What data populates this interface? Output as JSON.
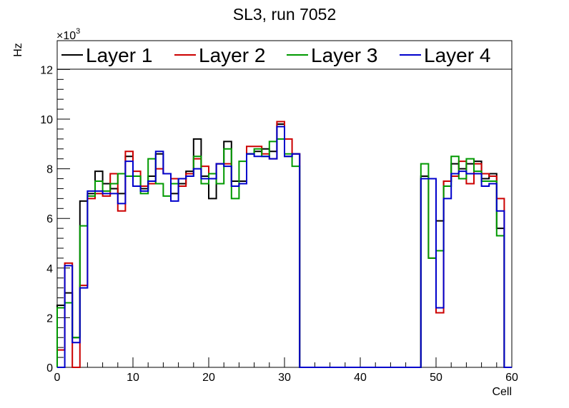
{
  "chart_data": {
    "type": "line",
    "title": "SL3, run 7052",
    "xlabel": "Cell",
    "ylabel": "Hz",
    "exponent_label": "×10",
    "exponent_power": "3",
    "xlim": [
      0,
      60
    ],
    "ylim": [
      0,
      13
    ],
    "x_ticks": [
      0,
      10,
      20,
      30,
      40,
      50,
      60
    ],
    "x_tick_labels": [
      "0",
      "10",
      "20",
      "30",
      "40",
      "50",
      "60"
    ],
    "y_ticks": [
      0,
      2,
      4,
      6,
      8,
      10,
      12
    ],
    "y_tick_labels": [
      "0",
      "2",
      "4",
      "6",
      "8",
      "10",
      "12"
    ],
    "bin_width": 1,
    "legend_position": "top",
    "series": [
      {
        "name": "Layer 1",
        "color": "#000000",
        "values": [
          2.5,
          3.0,
          1.2,
          6.7,
          7.0,
          7.9,
          7.4,
          7.2,
          7.0,
          8.5,
          7.7,
          7.2,
          7.7,
          8.6,
          7.8,
          7.0,
          7.4,
          7.9,
          9.2,
          7.7,
          6.8,
          8.2,
          9.1,
          7.5,
          7.5,
          8.6,
          8.7,
          8.8,
          8.7,
          9.8,
          8.5,
          8.6,
          0,
          0,
          0,
          0,
          0,
          0,
          0,
          0,
          0,
          0,
          0,
          0,
          0,
          0,
          0,
          0,
          7.7,
          7.6,
          5.9,
          7.5,
          8.2,
          8.0,
          8.2,
          8.3,
          7.6,
          7.8,
          5.6,
          0
        ]
      },
      {
        "name": "Layer 2",
        "color": "#cc0000",
        "values": [
          0.7,
          4.2,
          0,
          3.3,
          6.8,
          7.0,
          6.9,
          7.8,
          6.3,
          8.7,
          7.9,
          7.3,
          7.4,
          8.0,
          7.8,
          7.6,
          7.3,
          7.8,
          8.4,
          8.1,
          7.6,
          8.2,
          8.2,
          7.3,
          7.4,
          8.9,
          8.9,
          8.6,
          8.4,
          9.9,
          9.2,
          8.6,
          0,
          0,
          0,
          0,
          0,
          0,
          0,
          0,
          0,
          0,
          0,
          0,
          0,
          0,
          0,
          0,
          7.6,
          4.4,
          2.2,
          7.5,
          7.7,
          8.3,
          7.4,
          8.2,
          7.8,
          7.7,
          6.8,
          0
        ]
      },
      {
        "name": "Layer 3",
        "color": "#009900",
        "values": [
          2.4,
          2.6,
          1.2,
          5.7,
          6.9,
          7.5,
          7.1,
          7.4,
          7.8,
          7.7,
          7.7,
          7.0,
          8.4,
          7.4,
          6.9,
          7.4,
          7.6,
          7.7,
          8.5,
          7.4,
          7.8,
          7.4,
          8.8,
          6.8,
          8.3,
          8.6,
          8.8,
          8.5,
          9.1,
          9.2,
          8.6,
          8.1,
          0,
          0,
          0,
          0,
          0,
          0,
          0,
          0,
          0,
          0,
          0,
          0,
          0,
          0,
          0,
          0,
          8.2,
          4.4,
          4.7,
          7.3,
          8.5,
          7.6,
          8.4,
          7.9,
          7.5,
          7.5,
          5.3,
          0
        ]
      },
      {
        "name": "Layer 4",
        "color": "#0000cc",
        "values": [
          0,
          4.1,
          1.0,
          3.2,
          7.1,
          7.1,
          7.0,
          7.0,
          6.6,
          8.3,
          7.3,
          7.1,
          7.5,
          8.7,
          7.8,
          6.7,
          7.6,
          7.7,
          8.0,
          7.6,
          7.6,
          8.2,
          8.1,
          7.3,
          7.4,
          8.6,
          8.5,
          8.5,
          8.4,
          9.7,
          8.5,
          8.6,
          0,
          0,
          0,
          0,
          0,
          0,
          0,
          0,
          0,
          0,
          0,
          0,
          0,
          0,
          0,
          0,
          7.6,
          7.6,
          2.4,
          6.8,
          7.8,
          7.9,
          7.8,
          7.8,
          7.3,
          7.4,
          6.3,
          0
        ]
      }
    ]
  }
}
